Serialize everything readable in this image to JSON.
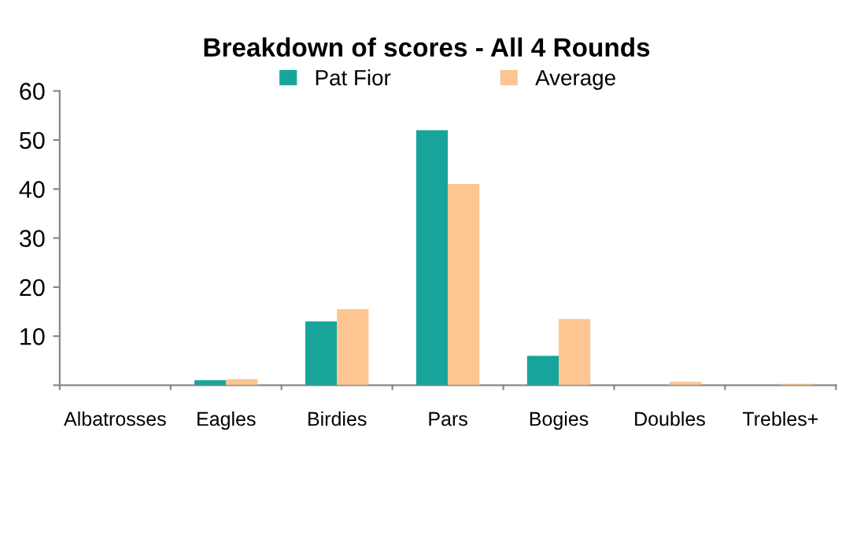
{
  "chart_data": {
    "type": "bar",
    "title": "Breakdown of scores - All 4 Rounds",
    "categories": [
      "Albatrosses",
      "Eagles",
      "Birdies",
      "Pars",
      "Bogies",
      "Doubles",
      "Trebles+"
    ],
    "series": [
      {
        "name": "Pat Fior",
        "color": "#17a59b",
        "values": [
          0,
          1,
          13,
          52,
          6,
          0,
          0
        ]
      },
      {
        "name": "Average",
        "color": "#fcc592",
        "values": [
          0,
          1.2,
          15.5,
          41,
          13.5,
          0.7,
          0.3
        ]
      }
    ],
    "ylim": [
      0,
      60
    ],
    "yticks": [
      {
        "value": 0,
        "label": null
      },
      10,
      20,
      30,
      40,
      50,
      60
    ],
    "grid": false,
    "legend": "top"
  }
}
